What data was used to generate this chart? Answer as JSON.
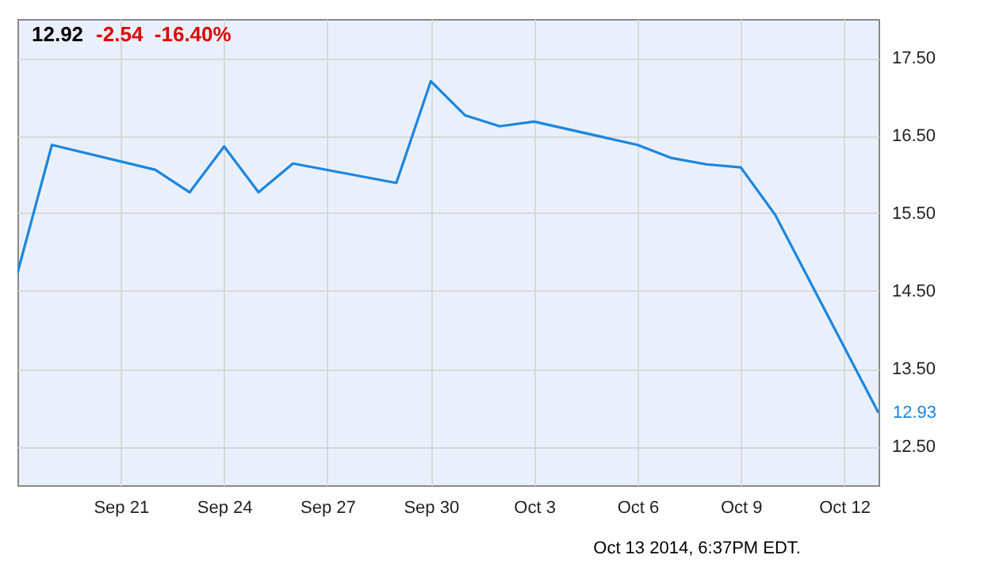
{
  "chart_data": {
    "type": "line",
    "title": "12.92",
    "subtitle": "-2.54  -16.40%",
    "x": [
      "2014-09-18",
      "2014-09-19",
      "2014-09-22",
      "2014-09-23",
      "2014-09-24",
      "2014-09-25",
      "2014-09-26",
      "2014-09-29",
      "2014-09-30",
      "2014-10-01",
      "2014-10-02",
      "2014-10-03",
      "2014-10-06",
      "2014-10-07",
      "2014-10-08",
      "2014-10-09",
      "2014-10-10",
      "2014-10-13"
    ],
    "series": [
      {
        "color": "#1a86e0",
        "values": [
          14.73,
          16.38,
          16.06,
          15.77,
          16.36,
          15.77,
          16.14,
          15.89,
          17.2,
          16.76,
          16.62,
          16.68,
          16.38,
          16.21,
          16.13,
          16.09,
          15.48,
          12.93
        ]
      }
    ],
    "xlim": [
      "2014-09-18",
      "2014-10-13"
    ],
    "xticks": [
      {
        "value": "2014-09-21",
        "label": "Sep 21"
      },
      {
        "value": "2014-09-24",
        "label": "Sep 24"
      },
      {
        "value": "2014-09-27",
        "label": "Sep 27"
      },
      {
        "value": "2014-09-30",
        "label": "Sep 30"
      },
      {
        "value": "2014-10-03",
        "label": "Oct 3"
      },
      {
        "value": "2014-10-06",
        "label": "Oct 6"
      },
      {
        "value": "2014-10-09",
        "label": "Oct 9"
      },
      {
        "value": "2014-10-12",
        "label": "Oct 12"
      }
    ],
    "ylim": [
      12,
      18
    ],
    "yticks": [
      {
        "value": 12.5,
        "label": "12.50"
      },
      {
        "value": 13.5,
        "label": "13.50"
      },
      {
        "value": 14.5,
        "label": "14.50"
      },
      {
        "value": 15.5,
        "label": "15.50"
      },
      {
        "value": 16.5,
        "label": "16.50"
      },
      {
        "value": 17.5,
        "label": "17.50"
      }
    ],
    "grid": true,
    "marker": "none",
    "line_style": "solid",
    "annotations": [
      {
        "text": "12.93",
        "x": "2014-10-13",
        "y": 12.93
      },
      "Oct 13 2014, 6:37PM EDT."
    ]
  }
}
